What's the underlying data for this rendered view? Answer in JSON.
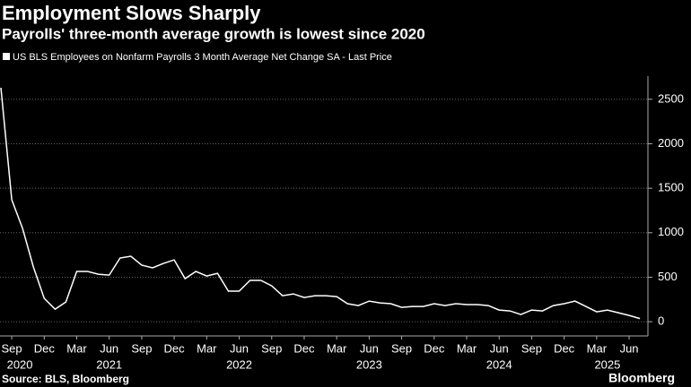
{
  "chart_data": {
    "type": "line",
    "title": "Employment Slows Sharply",
    "subtitle": "Payrolls' three-month average growth is lowest since 2020",
    "source": "Source: BLS, Bloomberg",
    "brand": "Bloomberg",
    "x": [
      "2020-08",
      "2020-09",
      "2020-10",
      "2020-11",
      "2020-12",
      "2021-01",
      "2021-02",
      "2021-03",
      "2021-04",
      "2021-05",
      "2021-06",
      "2021-07",
      "2021-08",
      "2021-09",
      "2021-10",
      "2021-11",
      "2021-12",
      "2022-01",
      "2022-02",
      "2022-03",
      "2022-04",
      "2022-05",
      "2022-06",
      "2022-07",
      "2022-08",
      "2022-09",
      "2022-10",
      "2022-11",
      "2022-12",
      "2023-01",
      "2023-02",
      "2023-03",
      "2023-04",
      "2023-05",
      "2023-06",
      "2023-07",
      "2023-08",
      "2023-09",
      "2023-10",
      "2023-11",
      "2023-12",
      "2024-01",
      "2024-02",
      "2024-03",
      "2024-04",
      "2024-05",
      "2024-06",
      "2024-07",
      "2024-08",
      "2024-09",
      "2024-10",
      "2024-11",
      "2024-12",
      "2025-01",
      "2025-02",
      "2025-03",
      "2025-04",
      "2025-05",
      "2025-06",
      "2025-07"
    ],
    "series": [
      {
        "name": "US BLS Employees on Nonfarm Payrolls 3 Month Average Net Change SA - Last Price",
        "color": "#ffffff",
        "values": [
          2630,
          1370,
          1050,
          615,
          262,
          141,
          222,
          565,
          565,
          534,
          524,
          716,
          736,
          635,
          605,
          655,
          695,
          484,
          565,
          514,
          544,
          343,
          343,
          464,
          464,
          403,
          292,
          312,
          272,
          292,
          292,
          282,
          202,
          181,
          232,
          212,
          202,
          161,
          171,
          171,
          202,
          181,
          202,
          192,
          192,
          181,
          131,
          121,
          81,
          131,
          121,
          181,
          202,
          232,
          171,
          111,
          131,
          101,
          71,
          35
        ]
      }
    ],
    "ylim": [
      -160,
      2760
    ],
    "yticks": [
      0,
      500,
      1000,
      1500,
      2000,
      2500
    ],
    "grid": true,
    "xticks": [
      {
        "value": "2020-09",
        "label": "Sep"
      },
      {
        "value": "2020-12",
        "label": "Dec"
      },
      {
        "value": "2021-03",
        "label": "Mar"
      },
      {
        "value": "2021-06",
        "label": "Jun"
      },
      {
        "value": "2021-09",
        "label": "Sep"
      },
      {
        "value": "2021-12",
        "label": "Dec"
      },
      {
        "value": "2022-03",
        "label": "Mar"
      },
      {
        "value": "2022-06",
        "label": "Jun"
      },
      {
        "value": "2022-09",
        "label": "Sep"
      },
      {
        "value": "2022-12",
        "label": "Dec"
      },
      {
        "value": "2023-03",
        "label": "Mar"
      },
      {
        "value": "2023-06",
        "label": "Jun"
      },
      {
        "value": "2023-09",
        "label": "Sep"
      },
      {
        "value": "2023-12",
        "label": "Dec"
      },
      {
        "value": "2024-03",
        "label": "Mar"
      },
      {
        "value": "2024-06",
        "label": "Jun"
      },
      {
        "value": "2024-09",
        "label": "Sep"
      },
      {
        "value": "2024-12",
        "label": "Dec"
      },
      {
        "value": "2025-03",
        "label": "Mar"
      },
      {
        "value": "2025-06",
        "label": "Jun"
      }
    ],
    "xyears": [
      {
        "value": "2020-09",
        "label": "2020"
      },
      {
        "value": "2021-06",
        "label": "2021"
      },
      {
        "value": "2022-06",
        "label": "2022"
      },
      {
        "value": "2023-06",
        "label": "2023"
      },
      {
        "value": "2024-06",
        "label": "2024"
      },
      {
        "value": "2025-04",
        "label": "2025"
      }
    ]
  }
}
